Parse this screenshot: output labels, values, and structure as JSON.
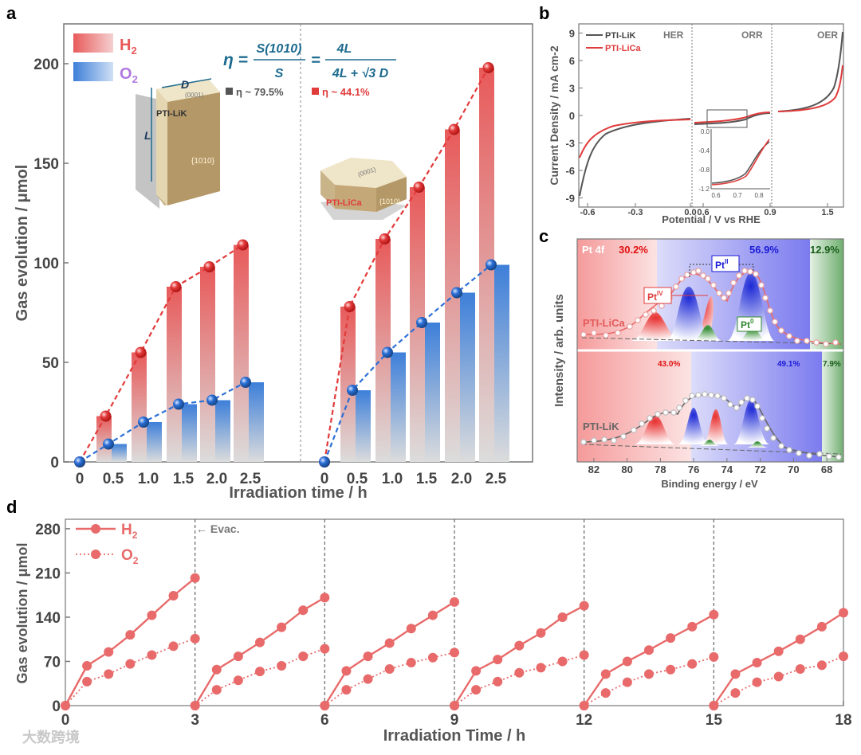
{
  "panel_labels": {
    "a": "a",
    "b": "b",
    "c": "c",
    "d": "d"
  },
  "colors": {
    "h2": "#e85a5a",
    "o2": "#3d7fd9",
    "pti_lik": "#555555",
    "pti_lica": "#e03c3c",
    "axis": "#777777"
  },
  "panel_a": {
    "legend": {
      "h2": "H",
      "h2_sub": "2",
      "o2": "O",
      "o2_sub": "2"
    },
    "formula": {
      "lhs": "η =",
      "frac1_num": "S(1010)",
      "frac1_den": "S",
      "eq": "=",
      "frac2_num": "4L",
      "frac2_den": "4L + √3 D"
    },
    "eta_lik": "η ~ 79.5%",
    "eta_lica": "η ~ 44.1%",
    "crystal_lik": {
      "name": "PTI-LiK",
      "face_top": "(0001)",
      "face_side": "{1010}",
      "dim_d": "D",
      "dim_l": "L"
    },
    "crystal_lica": {
      "name": "PTI-LiCa",
      "face_top": "(0001)",
      "face_side": "{1010}"
    }
  },
  "panel_b": {
    "legend": [
      "PTI-LiK",
      "PTI-LiCa"
    ],
    "regions": [
      "HER",
      "ORR",
      "OER"
    ],
    "inset_ticks_x": [
      "0.6",
      "0.7",
      "0.8"
    ],
    "inset_ticks_y": [
      "0.0",
      "-0.4",
      "-0.8",
      "-1.2"
    ]
  },
  "panel_c": {
    "pt_label": "Pt 4f",
    "lica_pct": [
      "30.2%",
      "56.9%",
      "12.9%"
    ],
    "lik_pct": [
      "43.0%",
      "49.1%",
      "7.9%"
    ],
    "sample_top": "PTI-LiCa",
    "sample_bottom": "PTI-LiK",
    "species": {
      "iv": "Pt",
      "iv_sup": "IV",
      "ii": "Pt",
      "ii_sup": "II",
      "zero": "Pt",
      "zero_sup": "0"
    }
  },
  "panel_d": {
    "legend": {
      "h2": "H",
      "h2_sub": "2",
      "o2": "O",
      "o2_sub": "2"
    },
    "evac_label": "← Evac."
  },
  "watermark": "大数跨境",
  "chart_data": [
    {
      "type": "bar",
      "panel": "a",
      "xlabel": "Irradiation time / h",
      "ylabel": "Gas evolution / μmol",
      "ylim": [
        0,
        220
      ],
      "yticks": [
        0,
        50,
        100,
        150,
        200
      ],
      "groups": [
        {
          "name": "PTI-LiK",
          "categories": [
            "0",
            "0.5",
            "1.0",
            "1.5",
            "2.0",
            "2.5"
          ],
          "series": [
            {
              "name": "H2",
              "values": [
                0,
                23,
                55,
                88,
                98,
                109
              ]
            },
            {
              "name": "O2",
              "values": [
                0,
                9,
                20,
                29,
                31,
                40
              ]
            }
          ]
        },
        {
          "name": "PTI-LiCa",
          "categories": [
            "0",
            "0.5",
            "1.0",
            "1.5",
            "2.0",
            "2.5"
          ],
          "series": [
            {
              "name": "H2",
              "values": [
                0,
                78,
                112,
                138,
                167,
                198
              ]
            },
            {
              "name": "O2",
              "values": [
                0,
                36,
                55,
                70,
                85,
                99
              ]
            }
          ]
        }
      ]
    },
    {
      "type": "line",
      "panel": "b",
      "xlabel": "Potential / V vs RHE",
      "ylabel": "Current Density / mA cm-2",
      "ylim": [
        -10,
        10
      ],
      "yticks": [
        -9,
        -6,
        -3,
        0,
        3,
        6,
        9
      ],
      "xticks": [
        "-0.6",
        "-0.3",
        "0.0",
        "0.6",
        "0.9",
        "1.5"
      ],
      "series": [
        {
          "name": "PTI-LiK"
        },
        {
          "name": "PTI-LiCa"
        }
      ]
    },
    {
      "type": "line",
      "panel": "c",
      "xlabel": "Binding energy / eV",
      "ylabel": "Intensity / arb. units",
      "xlim": [
        83,
        67
      ],
      "xticks": [
        82,
        80,
        78,
        76,
        74,
        72,
        70,
        68
      ]
    },
    {
      "type": "line",
      "panel": "d",
      "xlabel": "Irradiation Time / h",
      "ylabel": "Gas evolution / μmol",
      "xlim": [
        0,
        18
      ],
      "ylim": [
        0,
        295
      ],
      "xticks": [
        0,
        3,
        6,
        9,
        12,
        15,
        18
      ],
      "yticks": [
        0,
        70,
        140,
        210,
        280
      ],
      "evacuation_times": [
        3,
        6,
        9,
        12,
        15
      ],
      "series": [
        {
          "name": "H2",
          "cycles": [
            [
              0,
              63,
              85,
              112,
              143,
              174,
              202
            ],
            [
              0,
              57,
              78,
              100,
              124,
              151,
              171
            ],
            [
              0,
              55,
              78,
              99,
              122,
              143,
              164
            ],
            [
              0,
              55,
              73,
              95,
              115,
              140,
              158
            ],
            [
              0,
              50,
              70,
              88,
              107,
              125,
              144
            ],
            [
              0,
              50,
              68,
              86,
              105,
              125,
              147
            ]
          ]
        },
        {
          "name": "O2",
          "cycles": [
            [
              0,
              38,
              50,
              66,
              80,
              94,
              106
            ],
            [
              0,
              25,
              40,
              54,
              63,
              78,
              90
            ],
            [
              0,
              25,
              42,
              58,
              68,
              76,
              84
            ],
            [
              0,
              25,
              38,
              52,
              60,
              70,
              80
            ],
            [
              0,
              20,
              37,
              50,
              57,
              66,
              77
            ],
            [
              0,
              20,
              37,
              46,
              58,
              64,
              78
            ]
          ]
        }
      ]
    }
  ]
}
